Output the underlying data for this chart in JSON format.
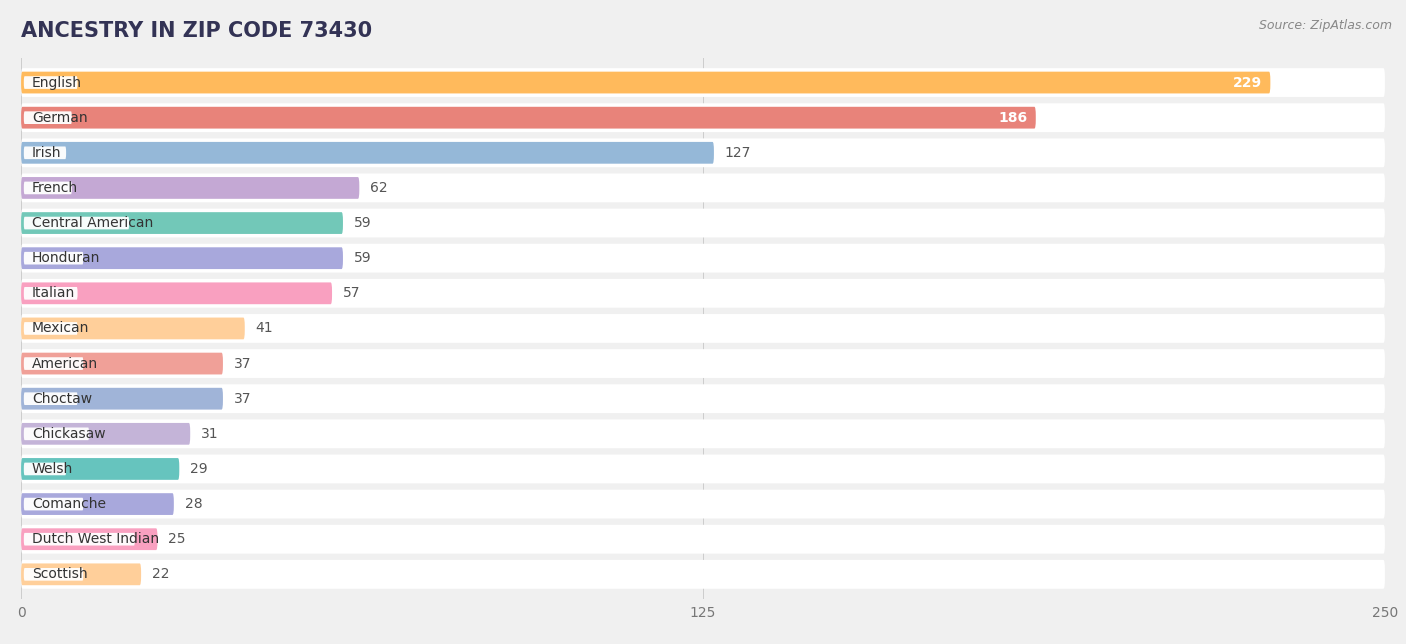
{
  "title": "ANCESTRY IN ZIP CODE 73430",
  "source": "Source: ZipAtlas.com",
  "categories": [
    "English",
    "German",
    "Irish",
    "French",
    "Central American",
    "Honduran",
    "Italian",
    "Mexican",
    "American",
    "Choctaw",
    "Chickasaw",
    "Welsh",
    "Comanche",
    "Dutch West Indian",
    "Scottish"
  ],
  "values": [
    229,
    186,
    127,
    62,
    59,
    59,
    57,
    41,
    37,
    37,
    31,
    29,
    28,
    25,
    22
  ],
  "colors": [
    "#FFBA5C",
    "#E8837A",
    "#95B8D8",
    "#C4A8D4",
    "#72C8B8",
    "#A8A8DC",
    "#F9A0C0",
    "#FFCF9A",
    "#F0A098",
    "#A0B4D8",
    "#C4B4D8",
    "#66C4BE",
    "#A8A8DC",
    "#F9A0C0",
    "#FFCF9A"
  ],
  "xlim_max": 250,
  "xticks": [
    0,
    125,
    250
  ],
  "bg_color": "#f0f0f0",
  "row_bg_color": "#f0f0f0",
  "bar_row_color": "#ffffff",
  "title_fontsize": 15,
  "source_fontsize": 9,
  "label_fontsize": 10,
  "value_fontsize": 10,
  "inside_threshold": 150
}
